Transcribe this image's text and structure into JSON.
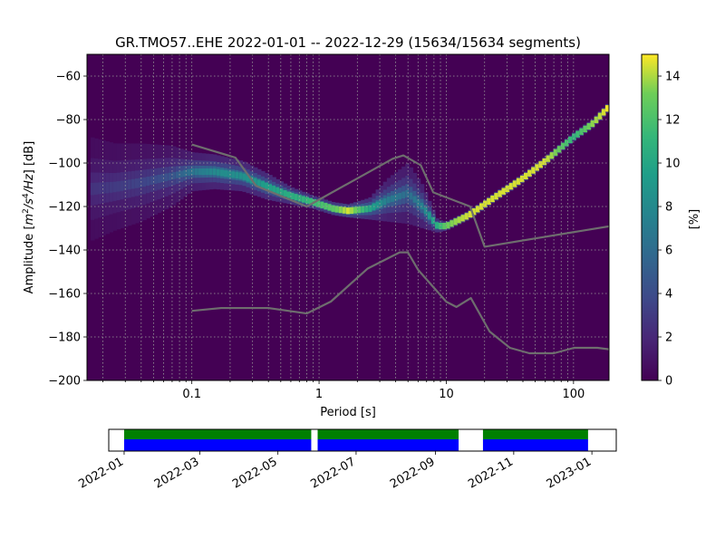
{
  "chart_data": [
    {
      "type": "heatmap",
      "title": "GR.TMO57..EHE   2022-01-01 -- 2022-12-29  (15634/15634 segments)",
      "xlabel": "Period [s]",
      "ylabel_parts": [
        "Amplitude [",
        "m",
        "2",
        "/s",
        "4",
        "/Hz",
        "] [dB]"
      ],
      "x_scale": "log",
      "xlim": [
        0.015,
        190
      ],
      "ylim": [
        -200,
        -50
      ],
      "x_ticks": [
        {
          "value": 0.1,
          "label": "0.1"
        },
        {
          "value": 1,
          "label": "1"
        },
        {
          "value": 10,
          "label": "10"
        },
        {
          "value": 100,
          "label": "100"
        }
      ],
      "y_ticks": [
        {
          "value": -60,
          "label": "−60"
        },
        {
          "value": -80,
          "label": "−80"
        },
        {
          "value": -100,
          "label": "−100"
        },
        {
          "value": -120,
          "label": "−120"
        },
        {
          "value": -140,
          "label": "−140"
        },
        {
          "value": -160,
          "label": "−160"
        },
        {
          "value": -180,
          "label": "−180"
        },
        {
          "value": -200,
          "label": "−200"
        }
      ],
      "grid": true,
      "background_color": "#440154",
      "colormap": "viridis",
      "colorbar": {
        "label": "[%]",
        "range": [
          0,
          15
        ],
        "ticks": [
          {
            "value": 0,
            "label": "0"
          },
          {
            "value": 2,
            "label": "2"
          },
          {
            "value": 4,
            "label": "4"
          },
          {
            "value": 6,
            "label": "6"
          },
          {
            "value": 8,
            "label": "8"
          },
          {
            "value": 10,
            "label": "10"
          },
          {
            "value": 12,
            "label": "12"
          },
          {
            "value": 14,
            "label": "14"
          }
        ]
      },
      "psd_ridge": [
        {
          "period": 0.016,
          "db": -112,
          "pct": 2.5,
          "spread_db": 24
        },
        {
          "period": 0.025,
          "db": -111,
          "pct": 3.0,
          "spread_db": 20
        },
        {
          "period": 0.04,
          "db": -109,
          "pct": 3.5,
          "spread_db": 18
        },
        {
          "period": 0.07,
          "db": -106,
          "pct": 4.5,
          "spread_db": 14
        },
        {
          "period": 0.1,
          "db": -104,
          "pct": 6.5,
          "spread_db": 9
        },
        {
          "period": 0.15,
          "db": -104,
          "pct": 8.0,
          "spread_db": 8
        },
        {
          "period": 0.25,
          "db": -106,
          "pct": 8.5,
          "spread_db": 7
        },
        {
          "period": 0.4,
          "db": -111,
          "pct": 9.5,
          "spread_db": 6
        },
        {
          "period": 0.6,
          "db": -115,
          "pct": 10.5,
          "spread_db": 4
        },
        {
          "period": 0.9,
          "db": -118,
          "pct": 11.5,
          "spread_db": 3
        },
        {
          "period": 1.3,
          "db": -121,
          "pct": 12.5,
          "spread_db": 3
        },
        {
          "period": 1.7,
          "db": -122,
          "pct": 14.5,
          "spread_db": 3
        },
        {
          "period": 2.5,
          "db": -121,
          "pct": 10.0,
          "spread_db": 5
        },
        {
          "period": 3.5,
          "db": -117,
          "pct": 7.0,
          "spread_db": 10
        },
        {
          "period": 5.0,
          "db": -114,
          "pct": 6.0,
          "spread_db": 14
        },
        {
          "period": 6.5,
          "db": -120,
          "pct": 7.5,
          "spread_db": 10
        },
        {
          "period": 8.5,
          "db": -129,
          "pct": 10.5,
          "spread_db": 3
        },
        {
          "period": 10,
          "db": -129,
          "pct": 13.0,
          "spread_db": 2
        },
        {
          "period": 15,
          "db": -124,
          "pct": 14.5,
          "spread_db": 2
        },
        {
          "period": 25,
          "db": -115,
          "pct": 14.5,
          "spread_db": 2
        },
        {
          "period": 40,
          "db": -107,
          "pct": 14.5,
          "spread_db": 2
        },
        {
          "period": 60,
          "db": -99,
          "pct": 14.5,
          "spread_db": 2
        },
        {
          "period": 100,
          "db": -88,
          "pct": 11.0,
          "spread_db": 2
        },
        {
          "period": 140,
          "db": -82,
          "pct": 13.5,
          "spread_db": 2
        },
        {
          "period": 190,
          "db": -74,
          "pct": 15.0,
          "spread_db": 2
        }
      ],
      "noise_models": [
        {
          "points": [
            [
              0.1,
              -91.5
            ],
            [
              0.22,
              -97.5
            ],
            [
              0.32,
              -110.5
            ],
            [
              0.8,
              -120
            ],
            [
              3.8,
              -98
            ],
            [
              4.6,
              -96.5
            ],
            [
              6.3,
              -101
            ],
            [
              7.9,
              -113.5
            ],
            [
              15.4,
              -120
            ],
            [
              20,
              -138.5
            ],
            [
              354.8,
              -126.5
            ]
          ]
        },
        {
          "points": [
            [
              0.1,
              -168
            ],
            [
              0.17,
              -166.7
            ],
            [
              0.4,
              -166.7
            ],
            [
              0.8,
              -169.2
            ],
            [
              1.24,
              -163.7
            ],
            [
              2.4,
              -148.6
            ],
            [
              4.3,
              -141.1
            ],
            [
              5.0,
              -141.1
            ],
            [
              6.0,
              -149.1
            ],
            [
              10.0,
              -163.8
            ],
            [
              12.0,
              -166.2
            ],
            [
              15.6,
              -162.1
            ],
            [
              21.9,
              -177.5
            ],
            [
              31.6,
              -185
            ],
            [
              45,
              -187.5
            ],
            [
              70,
              -187.5
            ],
            [
              101,
              -185
            ],
            [
              154,
              -185
            ],
            [
              328,
              -187.5
            ]
          ]
        }
      ]
    },
    {
      "type": "timeline",
      "date_range": [
        "2021-12-20",
        "2023-01-20"
      ],
      "x_ticks": [
        {
          "value": "2022-01-01",
          "label": "2022-01"
        },
        {
          "value": "2022-03-01",
          "label": "2022-03"
        },
        {
          "value": "2022-05-01",
          "label": "2022-05"
        },
        {
          "value": "2022-07-01",
          "label": "2022-07"
        },
        {
          "value": "2022-09-01",
          "label": "2022-09"
        },
        {
          "value": "2022-11-01",
          "label": "2022-11"
        },
        {
          "value": "2023-01-01",
          "label": "2023-01"
        }
      ],
      "coverage_segments": [
        {
          "start": "2022-01-01",
          "end": "2022-05-27"
        },
        {
          "start": "2022-06-01",
          "end": "2022-09-19"
        },
        {
          "start": "2022-10-08",
          "end": "2022-12-29"
        }
      ],
      "colors": {
        "top_band": "#008000",
        "bottom_band": "#0000ff"
      }
    }
  ]
}
